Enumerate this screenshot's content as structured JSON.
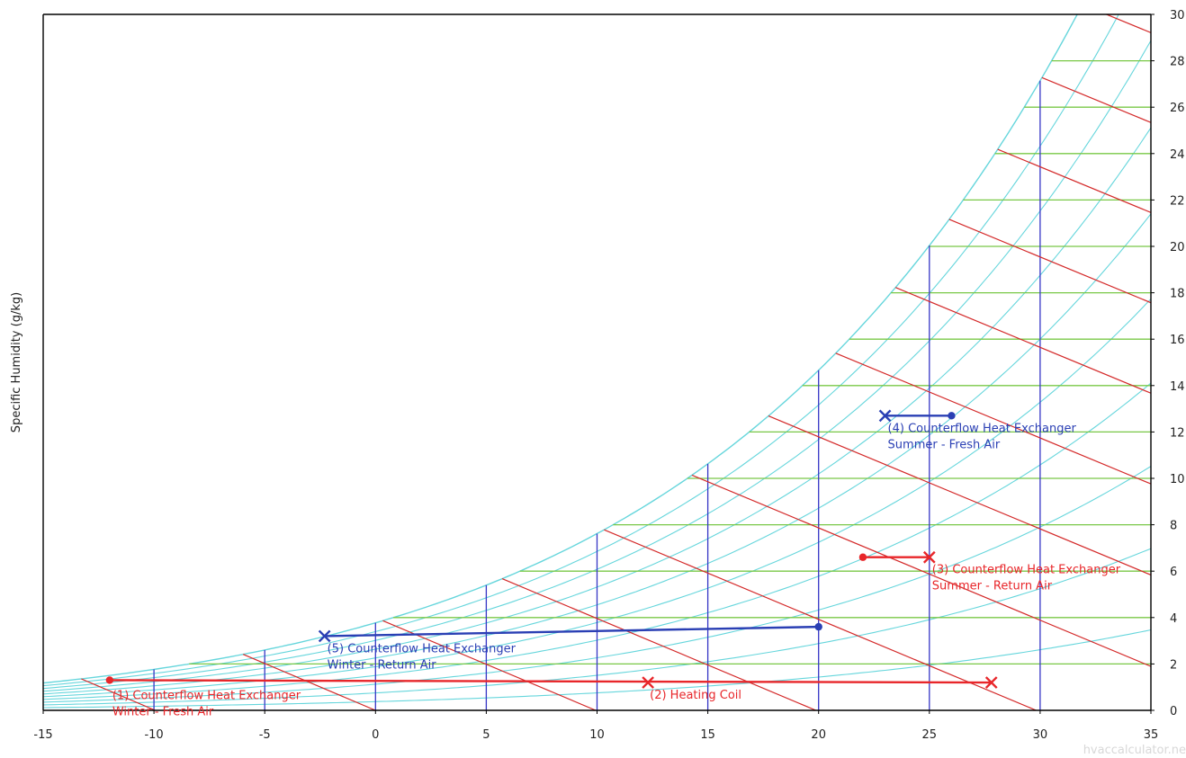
{
  "chart_data": {
    "type": "psychrometric",
    "ylabel": "Specific Humidity (g/kg)",
    "watermark": "hvaccalculator.ne",
    "xlim": [
      -15,
      35
    ],
    "ylim": [
      0,
      30
    ],
    "x_ticks": [
      -15,
      -10,
      -5,
      0,
      5,
      10,
      15,
      20,
      25,
      30,
      35
    ],
    "y_ticks": [
      0,
      2,
      4,
      6,
      8,
      10,
      12,
      14,
      16,
      18,
      20,
      22,
      24,
      26,
      28,
      30
    ],
    "y_axis_position": "right",
    "colors": {
      "axes": "#000000",
      "rh_curves": "#66d6dc",
      "humidity_lines": "#79c847",
      "temperature_lines": "#3636c6",
      "enthalpy_lines": "#d42a2a",
      "winter_process": "#e8262a",
      "summer_process": "#2a3fb4"
    },
    "process_lines": [
      {
        "label": "(1) Counterflow Heat Exchanger",
        "label2": "Winter - Fresh Air",
        "color": "#e8262a",
        "start": {
          "t": -12,
          "w": 1.3
        },
        "end": {
          "t": 27.8,
          "w": 1.2
        },
        "end_marker": "x"
      },
      {
        "label": "(2) Heating Coil",
        "label2": "",
        "color": "#e8262a",
        "start": null,
        "end": {
          "t": 12.3,
          "w": 1.2
        },
        "end_marker": "x"
      },
      {
        "label": "(3) Counterflow Heat Exchanger",
        "label2": "Summer - Return Air",
        "color": "#e8262a",
        "start": {
          "t": 22,
          "w": 6.6
        },
        "end": {
          "t": 25,
          "w": 6.6
        },
        "end_marker": "x"
      },
      {
        "label": "(4) Counterflow Heat Exchanger",
        "label2": "Summer - Fresh Air",
        "color": "#2a3fb4",
        "start": {
          "t": 26,
          "w": 12.7
        },
        "end": {
          "t": 23,
          "w": 12.7
        },
        "end_marker": "x"
      },
      {
        "label": "(5) Counterflow Heat Exchanger",
        "label2": "Winter - Return Air",
        "color": "#2a3fb4",
        "start": {
          "t": 20,
          "w": 3.6
        },
        "end": {
          "t": -2.3,
          "w": 3.2
        },
        "end_marker": "x"
      }
    ]
  }
}
